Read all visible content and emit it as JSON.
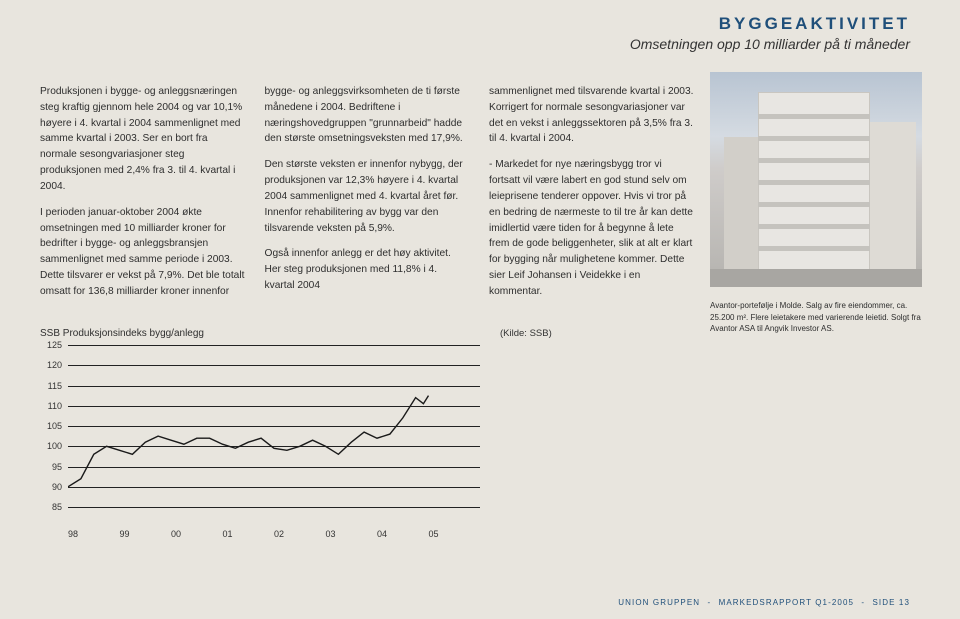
{
  "header": {
    "title": "BYGGEAKTIVITET",
    "subtitle": "Omsetningen opp 10 milliarder på ti måneder"
  },
  "body": {
    "col1": {
      "p1": "Produksjonen i bygge- og anleggsnæringen steg kraftig gjennom hele 2004 og var 10,1% høyere i 4. kvartal i 2004 sammenlignet med samme kvartal i 2003. Ser en bort fra normale sesongvariasjoner steg produksjonen med 2,4% fra 3. til 4. kvartal i 2004.",
      "p2": "I perioden januar-oktober 2004 økte omsetningen med 10 milliarder kroner for bedrifter i bygge- og anleggsbransjen sammenlignet med samme periode i 2003. Dette tilsvarer er vekst på 7,9%. Det ble totalt omsatt for 136,8 milliarder kroner innenfor"
    },
    "col2": {
      "p1": "bygge- og anleggsvirksomheten de ti første månedene i 2004. Bedriftene i næringshovedgruppen \"grunnarbeid\" hadde den største omsetningsveksten med 17,9%.",
      "p2": "Den største veksten er innenfor nybygg, der produksjonen var 12,3% høyere i 4. kvartal 2004 sammenlignet med 4. kvartal året før. Innenfor rehabilitering av bygg var den tilsvarende veksten på 5,9%.",
      "p3": "Også innenfor anlegg er det høy aktivitet. Her steg produksjonen med 11,8% i 4. kvartal 2004"
    },
    "col3": {
      "p1": "sammenlignet med tilsvarende kvartal i 2003. Korrigert for normale sesongvariasjoner var det en vekst i anleggssektoren på 3,5% fra 3. til 4. kvartal i 2004.",
      "p2": "- Markedet for nye næringsbygg tror vi fortsatt vil være labert en god stund selv om leieprisene tenderer oppover. Hvis vi tror på en bedring de nærmeste to til tre år kan dette imidlertid være tiden for å begynne å lete frem de gode beliggenheter, slik at alt er klart for bygging når mulighetene kommer. Dette sier Leif Johansen i Veidekke i en kommentar."
    }
  },
  "source": "(Kilde: SSB)",
  "caption": "Avantor-portefølje i Molde. Salg av fire eiendommer, ca. 25.200 m². Flere leietakere med varierende leietid. Solgt fra Avantor ASA til Angvik Investor AS.",
  "chart": {
    "title": "SSB Produksjonsindeks bygg/anlegg",
    "type": "line",
    "yticks": [
      85,
      90,
      95,
      100,
      105,
      110,
      115,
      120,
      125
    ],
    "ylim": [
      85,
      125
    ],
    "xlabels": [
      "98",
      "99",
      "00",
      "01",
      "02",
      "03",
      "04",
      "05"
    ],
    "xlim": [
      0,
      8
    ],
    "line_color": "#1a1a1a",
    "line_width": 1.4,
    "grid_color": "#222222",
    "background": "transparent",
    "points": [
      [
        0.0,
        90
      ],
      [
        0.25,
        92
      ],
      [
        0.5,
        98
      ],
      [
        0.75,
        100
      ],
      [
        1.0,
        99
      ],
      [
        1.25,
        98
      ],
      [
        1.5,
        101
      ],
      [
        1.75,
        102.5
      ],
      [
        2.0,
        101.5
      ],
      [
        2.25,
        100.5
      ],
      [
        2.5,
        102
      ],
      [
        2.75,
        102
      ],
      [
        3.0,
        100.5
      ],
      [
        3.25,
        99.5
      ],
      [
        3.5,
        101
      ],
      [
        3.75,
        102
      ],
      [
        4.0,
        99.5
      ],
      [
        4.25,
        99
      ],
      [
        4.5,
        100
      ],
      [
        4.75,
        101.5
      ],
      [
        5.0,
        100
      ],
      [
        5.25,
        98
      ],
      [
        5.5,
        101
      ],
      [
        5.75,
        103.5
      ],
      [
        6.0,
        102
      ],
      [
        6.25,
        103
      ],
      [
        6.5,
        107
      ],
      [
        6.75,
        112
      ],
      [
        6.9,
        110.5
      ],
      [
        7.0,
        112.5
      ]
    ]
  },
  "footer": {
    "org": "UNION GRUPPEN",
    "report": "MARKEDSRAPPORT Q1-2005",
    "page": "SIDE 13"
  }
}
